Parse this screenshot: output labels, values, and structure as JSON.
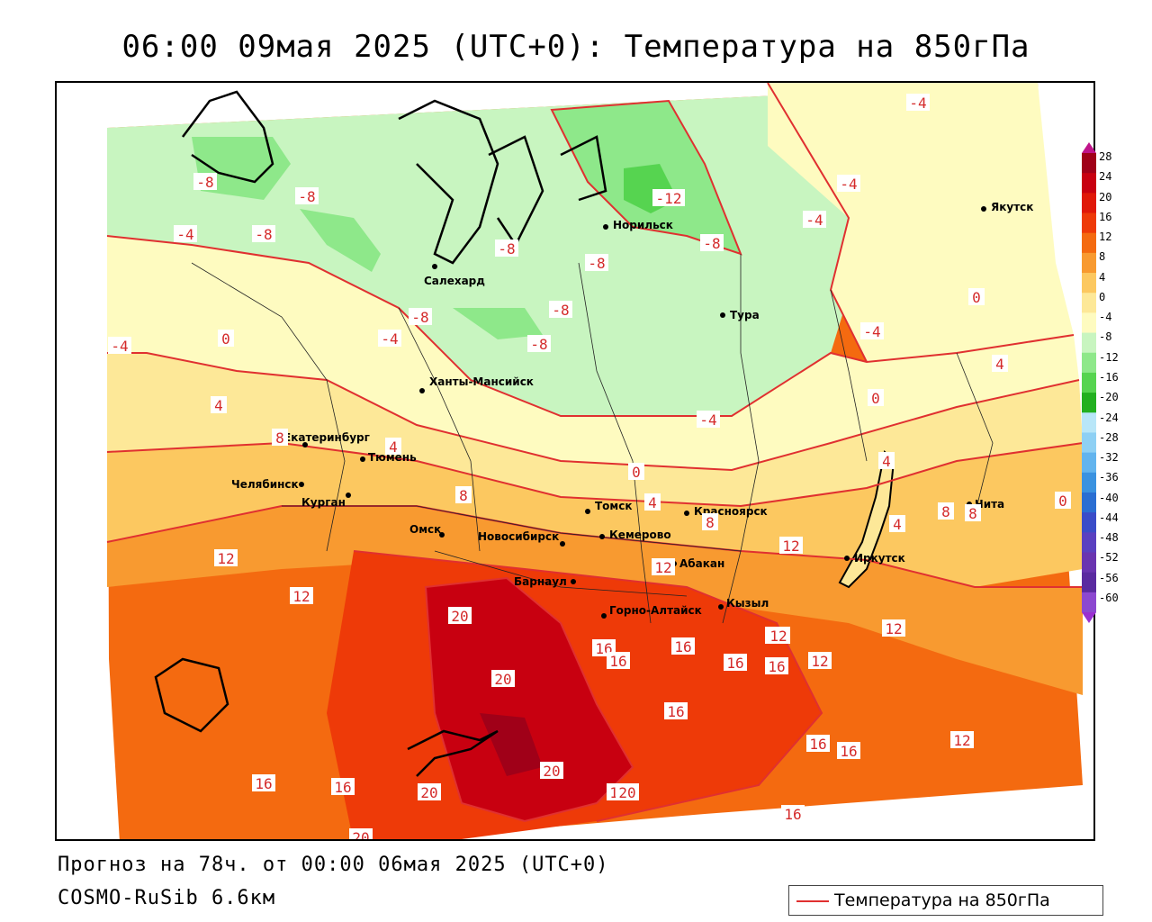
{
  "title": "06:00 09мая 2025 (UTC+0): Температура на 850гПа",
  "footer": {
    "forecast": "Прогноз на 78ч. от 00:00 06мая 2025 (UTC+0)",
    "model": "COSMO-RuSib 6.6км"
  },
  "legend": {
    "label": "Температура на 850гПа",
    "line_color": "#e03030"
  },
  "colorbar": {
    "ticks": [
      "28",
      "24",
      "20",
      "16",
      "12",
      "8",
      "4",
      "0",
      "-4",
      "-8",
      "-12",
      "-16",
      "-20",
      "-24",
      "-28",
      "-32",
      "-36",
      "-40",
      "-44",
      "-48",
      "-52",
      "-56",
      "-60"
    ],
    "colors": [
      "#a00018",
      "#c80010",
      "#e01808",
      "#ee3a08",
      "#f46a10",
      "#f89a30",
      "#fcc860",
      "#fde898",
      "#fefbc0",
      "#c8f5c0",
      "#8ee88a",
      "#56d450",
      "#22b020",
      "#b8e6f8",
      "#8ed0f4",
      "#62b4ee",
      "#3a92e0",
      "#2a6ed2",
      "#3a4cc8",
      "#5a40c0",
      "#6a34b0",
      "#5a2aa0",
      "#8c48d0"
    ],
    "top_color": "#c0148a",
    "bottom_color": "#9a30d0"
  },
  "cities": [
    {
      "name": "Якутск"
    },
    {
      "name": "Норильск"
    },
    {
      "name": "Салехард"
    },
    {
      "name": "Тура"
    },
    {
      "name": "Ханты-Мансийск"
    },
    {
      "name": "Екатеринбург"
    },
    {
      "name": "Тюмень"
    },
    {
      "name": "Челябинск"
    },
    {
      "name": "Курган"
    },
    {
      "name": "Омск"
    },
    {
      "name": "Новосибирск"
    },
    {
      "name": "Томск"
    },
    {
      "name": "Кемерово"
    },
    {
      "name": "Красноярск"
    },
    {
      "name": "Барнаул"
    },
    {
      "name": "Абакан"
    },
    {
      "name": "Горно-Алтайск"
    },
    {
      "name": "Кызыл"
    },
    {
      "name": "Иркутск"
    },
    {
      "name": "Чита"
    }
  ],
  "isotherm_labels": [
    "-8",
    "-8",
    "-4",
    "-8",
    "-8",
    "-8",
    "-8",
    "-8",
    "-8",
    "-12",
    "-8",
    "-4",
    "-4",
    "-4",
    "-4",
    "0",
    "-4",
    "-4",
    "-4",
    "0",
    "0",
    "4",
    "4",
    "4",
    "8",
    "0",
    "4",
    "4",
    "8",
    "8",
    "8",
    "0",
    "4",
    "8",
    "12",
    "12",
    "12",
    "12",
    "12",
    "12",
    "20",
    "20",
    "20",
    "20",
    "16",
    "16",
    "16",
    "16",
    "16",
    "16",
    "16",
    "12",
    "16",
    "16",
    "16",
    "12",
    "16",
    "16",
    "12",
    "20",
    "20"
  ]
}
